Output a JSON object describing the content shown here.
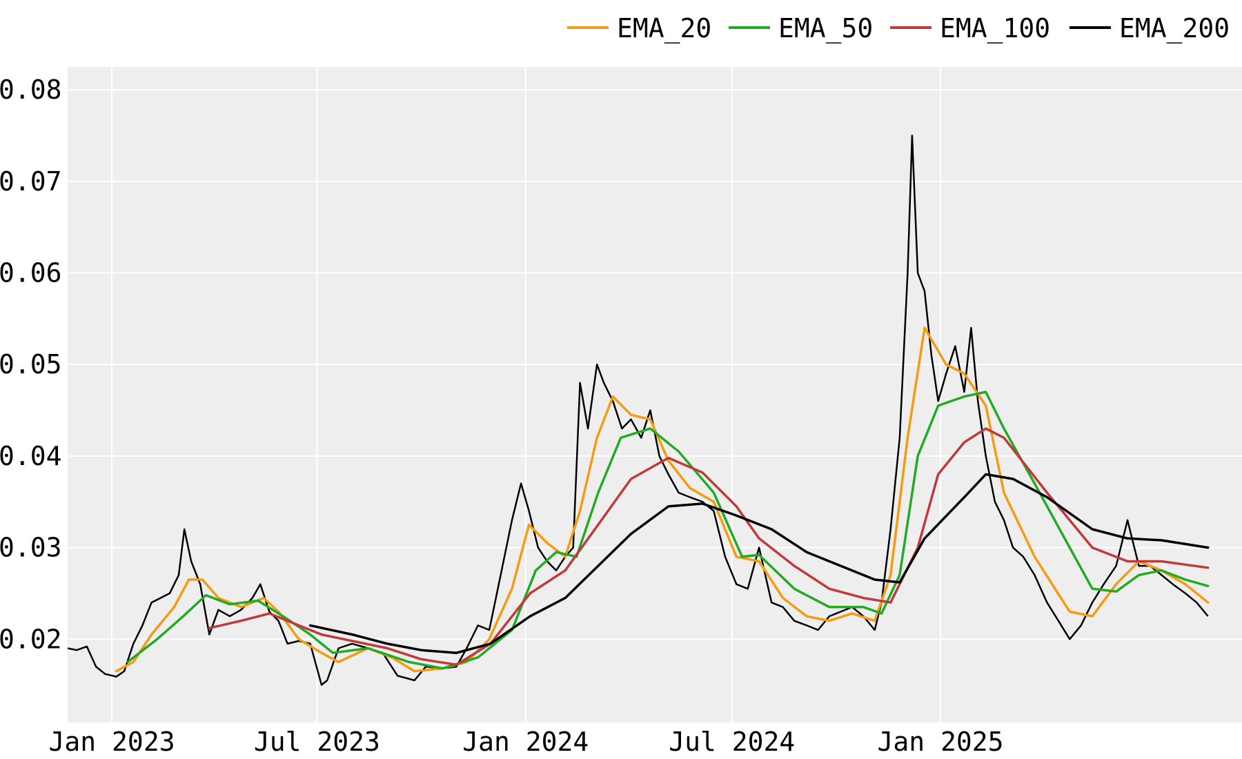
{
  "chart_data": {
    "type": "line",
    "title": "",
    "xlabel": "",
    "ylabel": "",
    "x_range": [
      "2022-11-23",
      "2025-09-24"
    ],
    "ylim": [
      0.0109,
      0.0825
    ],
    "grid": true,
    "legend_position": "top-right",
    "x_ticks": [
      {
        "date": "2023-01-01",
        "label": "Jan 2023"
      },
      {
        "date": "2023-07-01",
        "label": "Jul 2023"
      },
      {
        "date": "2024-01-01",
        "label": "Jan 2024"
      },
      {
        "date": "2024-07-01",
        "label": "Jul 2024"
      },
      {
        "date": "2025-01-01",
        "label": "Jan 2025"
      }
    ],
    "y_ticks": [
      {
        "value": 0.02,
        "label": "0.02"
      },
      {
        "value": 0.03,
        "label": "0.03"
      },
      {
        "value": 0.04,
        "label": "0.04"
      },
      {
        "value": 0.05,
        "label": "0.05"
      },
      {
        "value": 0.06,
        "label": "0.06"
      },
      {
        "value": 0.07,
        "label": "0.07"
      },
      {
        "value": 0.08,
        "label": "0.08"
      }
    ],
    "price": {
      "color": "#000000",
      "points": [
        [
          "2022-11-23",
          0.019
        ],
        [
          "2022-12-01",
          0.0188
        ],
        [
          "2022-12-10",
          0.0192
        ],
        [
          "2022-12-18",
          0.017
        ],
        [
          "2022-12-26",
          0.0162
        ],
        [
          "2023-01-05",
          0.0159
        ],
        [
          "2023-01-12",
          0.0165
        ],
        [
          "2023-01-20",
          0.0195
        ],
        [
          "2023-01-28",
          0.0215
        ],
        [
          "2023-02-05",
          0.024
        ],
        [
          "2023-02-13",
          0.0245
        ],
        [
          "2023-02-21",
          0.025
        ],
        [
          "2023-03-01",
          0.027
        ],
        [
          "2023-03-06",
          0.032
        ],
        [
          "2023-03-12",
          0.0285
        ],
        [
          "2023-03-20",
          0.026
        ],
        [
          "2023-03-28",
          0.0205
        ],
        [
          "2023-04-05",
          0.0232
        ],
        [
          "2023-04-15",
          0.0225
        ],
        [
          "2023-04-25",
          0.0232
        ],
        [
          "2023-05-05",
          0.0245
        ],
        [
          "2023-05-12",
          0.026
        ],
        [
          "2023-05-20",
          0.023
        ],
        [
          "2023-05-28",
          0.022
        ],
        [
          "2023-06-05",
          0.0195
        ],
        [
          "2023-06-15",
          0.0198
        ],
        [
          "2023-06-25",
          0.0195
        ],
        [
          "2023-07-05",
          0.015
        ],
        [
          "2023-07-10",
          0.0155
        ],
        [
          "2023-07-20",
          0.019
        ],
        [
          "2023-08-01",
          0.0195
        ],
        [
          "2023-08-15",
          0.019
        ],
        [
          "2023-08-28",
          0.0185
        ],
        [
          "2023-09-10",
          0.016
        ],
        [
          "2023-09-25",
          0.0155
        ],
        [
          "2023-10-05",
          0.017
        ],
        [
          "2023-10-20",
          0.0168
        ],
        [
          "2023-11-01",
          0.017
        ],
        [
          "2023-11-10",
          0.019
        ],
        [
          "2023-11-20",
          0.0215
        ],
        [
          "2023-11-30",
          0.021
        ],
        [
          "2023-12-10",
          0.027
        ],
        [
          "2023-12-20",
          0.033
        ],
        [
          "2023-12-28",
          0.037
        ],
        [
          "2024-01-04",
          0.034
        ],
        [
          "2024-01-12",
          0.03
        ],
        [
          "2024-01-20",
          0.0285
        ],
        [
          "2024-01-28",
          0.0275
        ],
        [
          "2024-02-05",
          0.029
        ],
        [
          "2024-02-12",
          0.03
        ],
        [
          "2024-02-18",
          0.048
        ],
        [
          "2024-02-25",
          0.043
        ],
        [
          "2024-03-04",
          0.05
        ],
        [
          "2024-03-10",
          0.048
        ],
        [
          "2024-03-18",
          0.046
        ],
        [
          "2024-03-26",
          0.043
        ],
        [
          "2024-04-03",
          0.044
        ],
        [
          "2024-04-12",
          0.042
        ],
        [
          "2024-04-20",
          0.045
        ],
        [
          "2024-04-28",
          0.04
        ],
        [
          "2024-05-06",
          0.038
        ],
        [
          "2024-05-15",
          0.036
        ],
        [
          "2024-05-25",
          0.0355
        ],
        [
          "2024-06-05",
          0.035
        ],
        [
          "2024-06-15",
          0.034
        ],
        [
          "2024-06-25",
          0.029
        ],
        [
          "2024-07-05",
          0.026
        ],
        [
          "2024-07-15",
          0.0255
        ],
        [
          "2024-07-25",
          0.03
        ],
        [
          "2024-08-05",
          0.024
        ],
        [
          "2024-08-15",
          0.0235
        ],
        [
          "2024-08-25",
          0.022
        ],
        [
          "2024-09-05",
          0.0215
        ],
        [
          "2024-09-15",
          0.021
        ],
        [
          "2024-09-25",
          0.0225
        ],
        [
          "2024-10-05",
          0.023
        ],
        [
          "2024-10-15",
          0.0235
        ],
        [
          "2024-10-25",
          0.0225
        ],
        [
          "2024-11-04",
          0.021
        ],
        [
          "2024-11-10",
          0.024
        ],
        [
          "2024-11-18",
          0.032
        ],
        [
          "2024-11-26",
          0.042
        ],
        [
          "2024-12-03",
          0.06
        ],
        [
          "2024-12-07",
          0.075
        ],
        [
          "2024-12-12",
          0.06
        ],
        [
          "2024-12-18",
          0.058
        ],
        [
          "2024-12-24",
          0.051
        ],
        [
          "2024-12-30",
          0.046
        ],
        [
          "2025-01-06",
          0.049
        ],
        [
          "2025-01-14",
          0.052
        ],
        [
          "2025-01-22",
          0.047
        ],
        [
          "2025-01-28",
          0.054
        ],
        [
          "2025-02-03",
          0.046
        ],
        [
          "2025-02-10",
          0.04
        ],
        [
          "2025-02-18",
          0.035
        ],
        [
          "2025-02-26",
          0.033
        ],
        [
          "2025-03-06",
          0.03
        ],
        [
          "2025-03-15",
          0.029
        ],
        [
          "2025-03-25",
          0.027
        ],
        [
          "2025-04-05",
          0.024
        ],
        [
          "2025-04-15",
          0.022
        ],
        [
          "2025-04-25",
          0.02
        ],
        [
          "2025-05-05",
          0.0215
        ],
        [
          "2025-05-15",
          0.024
        ],
        [
          "2025-05-25",
          0.026
        ],
        [
          "2025-06-05",
          0.028
        ],
        [
          "2025-06-15",
          0.033
        ],
        [
          "2025-06-25",
          0.028
        ],
        [
          "2025-07-05",
          0.028
        ],
        [
          "2025-07-15",
          0.027
        ],
        [
          "2025-07-25",
          0.026
        ],
        [
          "2025-08-05",
          0.025
        ],
        [
          "2025-08-15",
          0.024
        ],
        [
          "2025-08-25",
          0.0225
        ]
      ]
    },
    "series": [
      {
        "name": "EMA_20",
        "color": "#f39c12",
        "points": [
          [
            "2023-01-05",
            0.0165
          ],
          [
            "2023-01-20",
            0.0175
          ],
          [
            "2023-02-05",
            0.0205
          ],
          [
            "2023-02-25",
            0.0235
          ],
          [
            "2023-03-10",
            0.0265
          ],
          [
            "2023-03-22",
            0.0265
          ],
          [
            "2023-04-05",
            0.0245
          ],
          [
            "2023-04-25",
            0.0235
          ],
          [
            "2023-05-15",
            0.0245
          ],
          [
            "2023-05-28",
            0.023
          ],
          [
            "2023-06-15",
            0.02
          ],
          [
            "2023-07-05",
            0.0185
          ],
          [
            "2023-07-20",
            0.0175
          ],
          [
            "2023-08-15",
            0.019
          ],
          [
            "2023-09-05",
            0.018
          ],
          [
            "2023-09-25",
            0.0165
          ],
          [
            "2023-10-20",
            0.0168
          ],
          [
            "2023-11-10",
            0.0175
          ],
          [
            "2023-11-30",
            0.02
          ],
          [
            "2023-12-20",
            0.0255
          ],
          [
            "2024-01-04",
            0.0325
          ],
          [
            "2024-01-20",
            0.0305
          ],
          [
            "2024-02-05",
            0.029
          ],
          [
            "2024-02-18",
            0.034
          ],
          [
            "2024-03-04",
            0.042
          ],
          [
            "2024-03-18",
            0.0465
          ],
          [
            "2024-04-03",
            0.0445
          ],
          [
            "2024-04-20",
            0.044
          ],
          [
            "2024-05-06",
            0.0395
          ],
          [
            "2024-05-25",
            0.0365
          ],
          [
            "2024-06-15",
            0.035
          ],
          [
            "2024-07-05",
            0.029
          ],
          [
            "2024-07-25",
            0.0285
          ],
          [
            "2024-08-15",
            0.0245
          ],
          [
            "2024-09-05",
            0.0225
          ],
          [
            "2024-09-25",
            0.022
          ],
          [
            "2024-10-15",
            0.0228
          ],
          [
            "2024-11-04",
            0.022
          ],
          [
            "2024-11-18",
            0.027
          ],
          [
            "2024-12-03",
            0.042
          ],
          [
            "2024-12-18",
            0.054
          ],
          [
            "2025-01-06",
            0.05
          ],
          [
            "2025-01-22",
            0.049
          ],
          [
            "2025-02-10",
            0.0455
          ],
          [
            "2025-02-26",
            0.036
          ],
          [
            "2025-03-25",
            0.029
          ],
          [
            "2025-04-25",
            0.023
          ],
          [
            "2025-05-15",
            0.0225
          ],
          [
            "2025-06-05",
            0.026
          ],
          [
            "2025-06-25",
            0.0285
          ],
          [
            "2025-07-15",
            0.0275
          ],
          [
            "2025-08-05",
            0.026
          ],
          [
            "2025-08-25",
            0.024
          ]
        ]
      },
      {
        "name": "EMA_50",
        "color": "#22aa22",
        "points": [
          [
            "2023-01-15",
            0.0175
          ],
          [
            "2023-02-10",
            0.02
          ],
          [
            "2023-03-05",
            0.0225
          ],
          [
            "2023-03-25",
            0.0248
          ],
          [
            "2023-04-15",
            0.0238
          ],
          [
            "2023-05-10",
            0.0242
          ],
          [
            "2023-06-01",
            0.0225
          ],
          [
            "2023-06-25",
            0.0205
          ],
          [
            "2023-07-15",
            0.0185
          ],
          [
            "2023-08-15",
            0.019
          ],
          [
            "2023-09-20",
            0.0175
          ],
          [
            "2023-10-20",
            0.0168
          ],
          [
            "2023-11-20",
            0.018
          ],
          [
            "2023-12-20",
            0.021
          ],
          [
            "2024-01-10",
            0.0275
          ],
          [
            "2024-01-28",
            0.0295
          ],
          [
            "2024-02-15",
            0.029
          ],
          [
            "2024-03-05",
            0.036
          ],
          [
            "2024-03-25",
            0.042
          ],
          [
            "2024-04-20",
            0.043
          ],
          [
            "2024-05-15",
            0.0405
          ],
          [
            "2024-06-15",
            0.036
          ],
          [
            "2024-07-10",
            0.029
          ],
          [
            "2024-07-25",
            0.0292
          ],
          [
            "2024-08-25",
            0.0255
          ],
          [
            "2024-09-25",
            0.0235
          ],
          [
            "2024-10-25",
            0.0235
          ],
          [
            "2024-11-10",
            0.0228
          ],
          [
            "2024-11-26",
            0.027
          ],
          [
            "2024-12-12",
            0.04
          ],
          [
            "2024-12-30",
            0.0455
          ],
          [
            "2025-01-22",
            0.0465
          ],
          [
            "2025-02-10",
            0.047
          ],
          [
            "2025-02-26",
            0.043
          ],
          [
            "2025-03-25",
            0.037
          ],
          [
            "2025-04-25",
            0.03
          ],
          [
            "2025-05-15",
            0.0255
          ],
          [
            "2025-06-05",
            0.0252
          ],
          [
            "2025-06-25",
            0.027
          ],
          [
            "2025-07-15",
            0.0275
          ],
          [
            "2025-08-05",
            0.0265
          ],
          [
            "2025-08-25",
            0.0258
          ]
        ]
      },
      {
        "name": "EMA_100",
        "color": "#c0393b",
        "points": [
          [
            "2023-03-28",
            0.0212
          ],
          [
            "2023-04-25",
            0.022
          ],
          [
            "2023-05-20",
            0.0228
          ],
          [
            "2023-06-15",
            0.0215
          ],
          [
            "2023-07-05",
            0.0205
          ],
          [
            "2023-08-01",
            0.0198
          ],
          [
            "2023-09-01",
            0.019
          ],
          [
            "2023-10-01",
            0.0178
          ],
          [
            "2023-11-01",
            0.0172
          ],
          [
            "2023-12-01",
            0.0195
          ],
          [
            "2024-01-05",
            0.025
          ],
          [
            "2024-02-05",
            0.0275
          ],
          [
            "2024-03-05",
            0.0325
          ],
          [
            "2024-04-03",
            0.0375
          ],
          [
            "2024-05-06",
            0.0398
          ],
          [
            "2024-06-05",
            0.0382
          ],
          [
            "2024-07-05",
            0.0345
          ],
          [
            "2024-07-25",
            0.031
          ],
          [
            "2024-08-25",
            0.028
          ],
          [
            "2024-09-25",
            0.0255
          ],
          [
            "2024-10-25",
            0.0245
          ],
          [
            "2024-11-18",
            0.024
          ],
          [
            "2024-12-12",
            0.03
          ],
          [
            "2024-12-30",
            0.038
          ],
          [
            "2025-01-22",
            0.0415
          ],
          [
            "2025-02-10",
            0.043
          ],
          [
            "2025-02-26",
            0.042
          ],
          [
            "2025-04-05",
            0.036
          ],
          [
            "2025-05-15",
            0.03
          ],
          [
            "2025-06-15",
            0.0285
          ],
          [
            "2025-07-15",
            0.0285
          ],
          [
            "2025-08-25",
            0.0278
          ]
        ]
      },
      {
        "name": "EMA_200",
        "color": "#000000",
        "points": [
          [
            "2023-06-25",
            0.0215
          ],
          [
            "2023-08-01",
            0.0205
          ],
          [
            "2023-09-01",
            0.0195
          ],
          [
            "2023-10-01",
            0.0188
          ],
          [
            "2023-11-01",
            0.0185
          ],
          [
            "2023-12-01",
            0.0195
          ],
          [
            "2024-01-05",
            0.0225
          ],
          [
            "2024-02-05",
            0.0245
          ],
          [
            "2024-03-05",
            0.028
          ],
          [
            "2024-04-03",
            0.0315
          ],
          [
            "2024-05-06",
            0.0345
          ],
          [
            "2024-06-05",
            0.0348
          ],
          [
            "2024-07-05",
            0.0335
          ],
          [
            "2024-08-05",
            0.032
          ],
          [
            "2024-09-05",
            0.0295
          ],
          [
            "2024-10-05",
            0.028
          ],
          [
            "2024-11-04",
            0.0265
          ],
          [
            "2024-11-26",
            0.0262
          ],
          [
            "2024-12-18",
            0.031
          ],
          [
            "2025-01-22",
            0.0355
          ],
          [
            "2025-02-10",
            0.038
          ],
          [
            "2025-03-06",
            0.0375
          ],
          [
            "2025-04-05",
            0.0355
          ],
          [
            "2025-05-15",
            0.032
          ],
          [
            "2025-06-15",
            0.031
          ],
          [
            "2025-07-15",
            0.0308
          ],
          [
            "2025-08-25",
            0.03
          ]
        ]
      }
    ]
  }
}
